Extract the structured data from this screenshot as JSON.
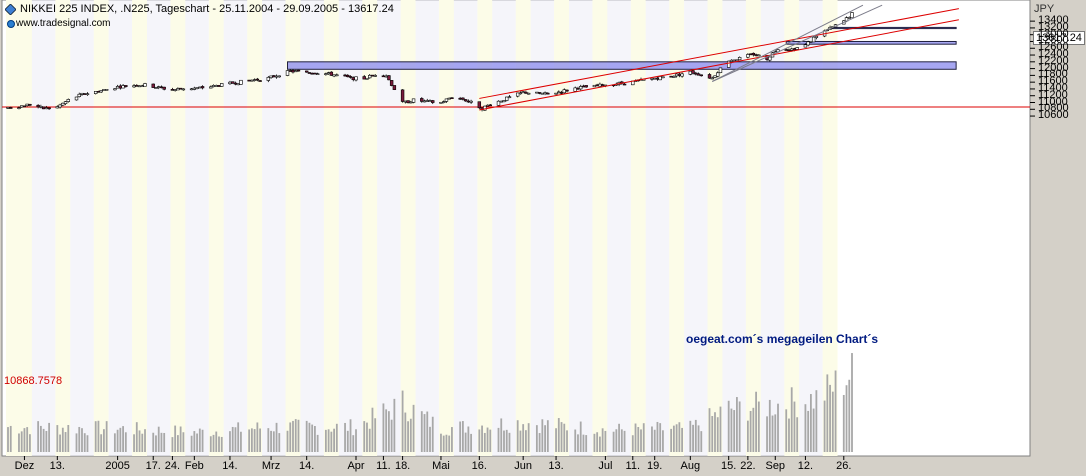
{
  "header": {
    "title": "NIKKEI 225 INDEX, .N225, Tageschart - 25.11.2004 - 29.09.2005 - 13617.24",
    "source": "www.tradesignal.com"
  },
  "currency": "JPY",
  "annotation": "oegeat.com´s megageilen Chart´s",
  "last_price_label": "13617.24",
  "reference_label": "10868.7578",
  "colors": {
    "background": "#ffffff",
    "band_light": "#fcfce8",
    "band_dark": "#ececf6",
    "candle_up": "#ffffff",
    "candle_down": "#7a1a3c",
    "channel": "#dd0000",
    "trend_gray": "#7c7c8a",
    "volume": "#a8a8a8",
    "zone_fill": "#8a8aee",
    "annotation": "#001a80"
  },
  "chart_data": {
    "type": "candlestick",
    "title": "NIKKEI 225 INDEX, .N225, Tageschart - 25.11.2004 - 29.09.2005 - 13617.24",
    "ylabel": "JPY",
    "y_range": [
      10450,
      13780
    ],
    "y_ticks": [
      10600,
      10800,
      11000,
      11200,
      11400,
      11600,
      11800,
      12000,
      12200,
      12400,
      12600,
      12800,
      13000,
      13200,
      13400
    ],
    "x_range": [
      "2004-11-25",
      "2005-09-29"
    ],
    "x_tick_labels": [
      {
        "date": "2004-12-01",
        "text": "Dez"
      },
      {
        "date": "2004-12-13",
        "text": "13."
      },
      {
        "date": "2005-01-04",
        "text": "2005"
      },
      {
        "date": "2005-01-17",
        "text": "17."
      },
      {
        "date": "2005-01-24",
        "text": "24."
      },
      {
        "date": "2005-02-01",
        "text": "Feb"
      },
      {
        "date": "2005-02-14",
        "text": "14."
      },
      {
        "date": "2005-03-01",
        "text": "Mrz"
      },
      {
        "date": "2005-03-14",
        "text": "14."
      },
      {
        "date": "2005-04-01",
        "text": "Apr"
      },
      {
        "date": "2005-04-11",
        "text": "11."
      },
      {
        "date": "2005-04-18",
        "text": "18."
      },
      {
        "date": "2005-05-02",
        "text": "Mai"
      },
      {
        "date": "2005-05-16",
        "text": "16."
      },
      {
        "date": "2005-06-01",
        "text": "Jun"
      },
      {
        "date": "2005-06-13",
        "text": "13."
      },
      {
        "date": "2005-07-01",
        "text": "Jul"
      },
      {
        "date": "2005-07-11",
        "text": "11."
      },
      {
        "date": "2005-07-19",
        "text": "19."
      },
      {
        "date": "2005-08-01",
        "text": "Aug"
      },
      {
        "date": "2005-08-15",
        "text": "15."
      },
      {
        "date": "2005-08-22",
        "text": "22."
      },
      {
        "date": "2005-09-01",
        "text": "Sep"
      },
      {
        "date": "2005-09-12",
        "text": "12."
      },
      {
        "date": "2005-09-26",
        "text": "26."
      }
    ],
    "weekly_bands": [
      [
        "2004-11-25",
        "2004-12-03"
      ],
      [
        "2004-12-13",
        "2004-12-17"
      ],
      [
        "2004-12-27",
        "2004-12-31"
      ],
      [
        "2005-01-10",
        "2005-01-14"
      ],
      [
        "2005-01-24",
        "2005-01-28"
      ],
      [
        "2005-02-07",
        "2005-02-11"
      ],
      [
        "2005-02-21",
        "2005-02-25"
      ],
      [
        "2005-03-07",
        "2005-03-11"
      ],
      [
        "2005-03-21",
        "2005-03-25"
      ],
      [
        "2005-04-04",
        "2005-04-08"
      ],
      [
        "2005-04-18",
        "2005-04-22"
      ],
      [
        "2005-05-02",
        "2005-05-06"
      ],
      [
        "2005-05-16",
        "2005-05-20"
      ],
      [
        "2005-05-30",
        "2005-06-03"
      ],
      [
        "2005-06-13",
        "2005-06-17"
      ],
      [
        "2005-06-27",
        "2005-07-01"
      ],
      [
        "2005-07-11",
        "2005-07-15"
      ],
      [
        "2005-07-25",
        "2005-07-29"
      ],
      [
        "2005-08-08",
        "2005-08-12"
      ],
      [
        "2005-08-22",
        "2005-08-26"
      ],
      [
        "2005-09-05",
        "2005-09-09"
      ],
      [
        "2005-09-19",
        "2005-09-23"
      ]
    ],
    "reference_line": 10868.7578,
    "zones": [
      {
        "from": "2005-03-07",
        "to": "2005-11-06",
        "low": 11980,
        "high": 12200
      },
      {
        "from": "2005-09-05",
        "to": "2005-11-06",
        "low": 12720,
        "high": 12800
      },
      {
        "from": "2005-09-21",
        "to": "2005-11-06",
        "low": 13180,
        "high": 13215
      }
    ],
    "trendlines": [
      {
        "kind": "channel",
        "from": {
          "date": "2005-05-16",
          "value": 11120
        },
        "to": {
          "date": "2005-11-07",
          "value": 13770
        }
      },
      {
        "kind": "channel",
        "from": {
          "date": "2005-05-16",
          "value": 10780
        },
        "to": {
          "date": "2005-11-07",
          "value": 13440
        }
      },
      {
        "kind": "steep",
        "from": {
          "date": "2005-08-09",
          "value": 11620
        },
        "to": {
          "date": "2005-10-03",
          "value": 13870
        }
      },
      {
        "kind": "steep",
        "from": {
          "date": "2005-08-09",
          "value": 11620
        },
        "to": {
          "date": "2005-10-10",
          "value": 13870
        }
      }
    ],
    "price_path": [
      [
        "2004-11-25",
        10850
      ],
      [
        "2004-11-30",
        10900
      ],
      [
        "2004-12-03",
        10950
      ],
      [
        "2004-12-08",
        10820
      ],
      [
        "2004-12-13",
        10870
      ],
      [
        "2004-12-17",
        11070
      ],
      [
        "2004-12-22",
        11240
      ],
      [
        "2004-12-27",
        11320
      ],
      [
        "2005-01-04",
        11460
      ],
      [
        "2005-01-10",
        11510
      ],
      [
        "2005-01-14",
        11520
      ],
      [
        "2005-01-19",
        11440
      ],
      [
        "2005-01-24",
        11370
      ],
      [
        "2005-01-28",
        11420
      ],
      [
        "2005-02-02",
        11420
      ],
      [
        "2005-02-08",
        11480
      ],
      [
        "2005-02-14",
        11560
      ],
      [
        "2005-02-21",
        11650
      ],
      [
        "2005-02-28",
        11720
      ],
      [
        "2005-03-04",
        11830
      ],
      [
        "2005-03-08",
        11920
      ],
      [
        "2005-03-14",
        11900
      ],
      [
        "2005-03-18",
        11880
      ],
      [
        "2005-03-24",
        11820
      ],
      [
        "2005-03-30",
        11720
      ],
      [
        "2005-04-04",
        11710
      ],
      [
        "2005-04-08",
        11830
      ],
      [
        "2005-04-12",
        11800
      ],
      [
        "2005-04-15",
        11400
      ],
      [
        "2005-04-18",
        10990
      ],
      [
        "2005-04-22",
        11070
      ],
      [
        "2005-04-27",
        11020
      ],
      [
        "2005-05-02",
        11000
      ],
      [
        "2005-05-06",
        11170
      ],
      [
        "2005-05-10",
        11100
      ],
      [
        "2005-05-13",
        11000
      ],
      [
        "2005-05-17",
        10830
      ],
      [
        "2005-05-20",
        10950
      ],
      [
        "2005-05-26",
        11120
      ],
      [
        "2005-06-01",
        11300
      ],
      [
        "2005-06-06",
        11270
      ],
      [
        "2005-06-10",
        11250
      ],
      [
        "2005-06-15",
        11330
      ],
      [
        "2005-06-21",
        11440
      ],
      [
        "2005-06-27",
        11470
      ],
      [
        "2005-07-01",
        11530
      ],
      [
        "2005-07-06",
        11560
      ],
      [
        "2005-07-12",
        11620
      ],
      [
        "2005-07-19",
        11720
      ],
      [
        "2005-07-25",
        11780
      ],
      [
        "2005-08-01",
        11900
      ],
      [
        "2005-08-05",
        11820
      ],
      [
        "2005-08-09",
        11720
      ],
      [
        "2005-08-11",
        11920
      ],
      [
        "2005-08-15",
        12250
      ],
      [
        "2005-08-19",
        12300
      ],
      [
        "2005-08-24",
        12430
      ],
      [
        "2005-08-29",
        12300
      ],
      [
        "2005-09-02",
        12600
      ],
      [
        "2005-09-07",
        12570
      ],
      [
        "2005-09-12",
        12690
      ],
      [
        "2005-09-16",
        12980
      ],
      [
        "2005-09-21",
        13180
      ],
      [
        "2005-09-26",
        13400
      ],
      [
        "2005-09-29",
        13617.24
      ]
    ],
    "volume_path": [
      [
        "2004-11-25",
        0.32
      ],
      [
        "2005-01-04",
        0.3
      ],
      [
        "2005-02-01",
        0.25
      ],
      [
        "2005-03-01",
        0.32
      ],
      [
        "2005-04-01",
        0.32
      ],
      [
        "2005-04-18",
        0.62
      ],
      [
        "2005-05-02",
        0.3
      ],
      [
        "2005-06-01",
        0.38
      ],
      [
        "2005-07-01",
        0.28
      ],
      [
        "2005-08-01",
        0.3
      ],
      [
        "2005-08-15",
        0.55
      ],
      [
        "2005-09-01",
        0.6
      ],
      [
        "2005-09-16",
        0.68
      ],
      [
        "2005-09-29",
        1.0
      ]
    ]
  }
}
